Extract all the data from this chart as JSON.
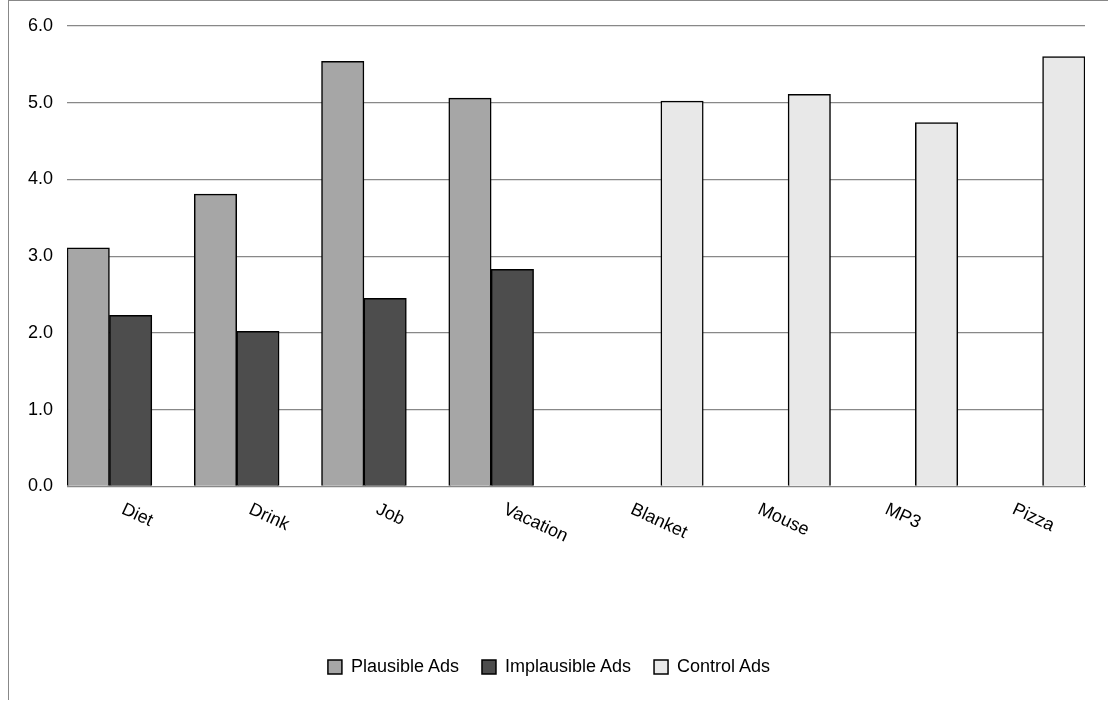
{
  "chart_data": {
    "type": "bar",
    "categories": [
      "Diet",
      "Drink",
      "Job",
      "Vacation",
      "Blanket",
      "Mouse",
      "MP3",
      "Pizza"
    ],
    "series": [
      {
        "name": "Plausible Ads",
        "color": "#a6a6a6",
        "values": [
          3.11,
          3.81,
          5.54,
          5.06,
          null,
          null,
          null,
          null
        ]
      },
      {
        "name": "Implausible Ads",
        "color": "#4d4d4d",
        "values": [
          2.23,
          2.02,
          2.45,
          2.83,
          null,
          null,
          null,
          null
        ]
      },
      {
        "name": "Control Ads",
        "color": "#e8e8e8",
        "values": [
          null,
          null,
          null,
          null,
          5.02,
          5.11,
          4.74,
          5.6
        ]
      }
    ],
    "ylim": [
      0,
      6
    ],
    "yticks": [
      {
        "value": 0,
        "label": "0.0"
      },
      {
        "value": 1,
        "label": "1.0"
      },
      {
        "value": 2,
        "label": "2.0"
      },
      {
        "value": 3,
        "label": "3.0"
      },
      {
        "value": 4,
        "label": "4.0"
      },
      {
        "value": 5,
        "label": "5.0"
      },
      {
        "value": 6,
        "label": "6.0"
      }
    ],
    "grid": "y",
    "legend": "bottom"
  }
}
